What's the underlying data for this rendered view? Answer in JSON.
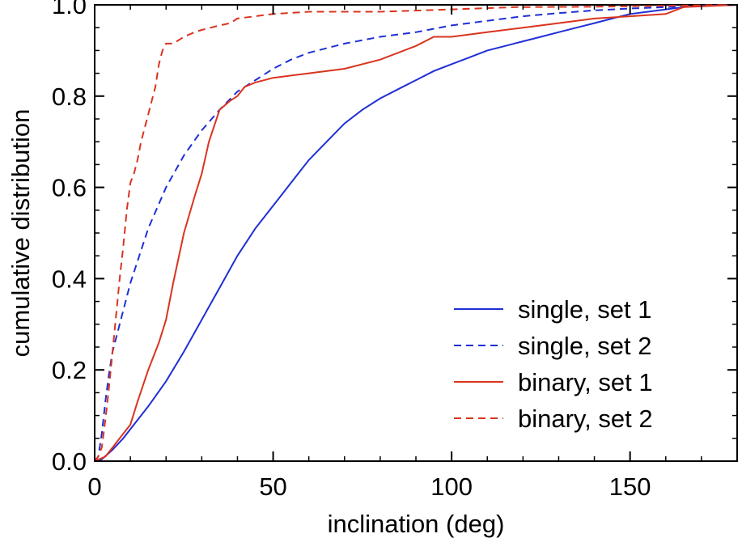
{
  "chart_data": {
    "type": "line",
    "title": "",
    "xlabel": "inclination (deg)",
    "ylabel": "cumulative distribution",
    "xlim": [
      0,
      180
    ],
    "ylim": [
      0.0,
      1.0
    ],
    "xticks": [
      0,
      50,
      100,
      150
    ],
    "xtick_labels": [
      "0",
      "50",
      "100",
      "150"
    ],
    "yticks": [
      0.0,
      0.2,
      0.4,
      0.6,
      0.8,
      1.0
    ],
    "ytick_labels": [
      "0.0",
      "0.2",
      "0.4",
      "0.6",
      "0.8",
      "1.0"
    ],
    "grid": false,
    "legend_position": "lower-right",
    "series": [
      {
        "name": "single, set 1",
        "color": "#1f2fd6",
        "style": "solid",
        "points": [
          [
            0,
            0
          ],
          [
            2,
            0.004
          ],
          [
            5,
            0.025
          ],
          [
            8,
            0.05
          ],
          [
            10,
            0.07
          ],
          [
            15,
            0.12
          ],
          [
            20,
            0.175
          ],
          [
            25,
            0.24
          ],
          [
            30,
            0.31
          ],
          [
            35,
            0.38
          ],
          [
            40,
            0.45
          ],
          [
            45,
            0.51
          ],
          [
            50,
            0.56
          ],
          [
            55,
            0.61
          ],
          [
            60,
            0.66
          ],
          [
            65,
            0.7
          ],
          [
            70,
            0.74
          ],
          [
            75,
            0.77
          ],
          [
            80,
            0.795
          ],
          [
            85,
            0.815
          ],
          [
            90,
            0.835
          ],
          [
            95,
            0.855
          ],
          [
            100,
            0.87
          ],
          [
            105,
            0.885
          ],
          [
            110,
            0.9
          ],
          [
            115,
            0.91
          ],
          [
            120,
            0.92
          ],
          [
            125,
            0.93
          ],
          [
            130,
            0.94
          ],
          [
            135,
            0.95
          ],
          [
            140,
            0.96
          ],
          [
            145,
            0.97
          ],
          [
            150,
            0.98
          ],
          [
            155,
            0.985
          ],
          [
            160,
            0.99
          ],
          [
            165,
            0.995
          ],
          [
            170,
            0.998
          ],
          [
            180,
            1.0
          ]
        ]
      },
      {
        "name": "single, set 2",
        "color": "#1f2fd6",
        "style": "dashed",
        "points": [
          [
            0,
            0
          ],
          [
            1,
            0.01
          ],
          [
            2,
            0.06
          ],
          [
            3,
            0.13
          ],
          [
            4,
            0.19
          ],
          [
            5,
            0.24
          ],
          [
            7,
            0.3
          ],
          [
            10,
            0.39
          ],
          [
            15,
            0.51
          ],
          [
            20,
            0.6
          ],
          [
            25,
            0.67
          ],
          [
            30,
            0.725
          ],
          [
            35,
            0.77
          ],
          [
            40,
            0.81
          ],
          [
            45,
            0.835
          ],
          [
            50,
            0.86
          ],
          [
            55,
            0.88
          ],
          [
            60,
            0.895
          ],
          [
            70,
            0.915
          ],
          [
            80,
            0.93
          ],
          [
            90,
            0.94
          ],
          [
            100,
            0.955
          ],
          [
            110,
            0.965
          ],
          [
            120,
            0.975
          ],
          [
            130,
            0.982
          ],
          [
            140,
            0.988
          ],
          [
            150,
            0.992
          ],
          [
            160,
            0.995
          ],
          [
            170,
            0.998
          ],
          [
            180,
            1.0
          ]
        ]
      },
      {
        "name": "binary, set 1",
        "color": "#d9341f",
        "style": "solid",
        "points": [
          [
            0,
            0
          ],
          [
            3,
            0.01
          ],
          [
            5,
            0.03
          ],
          [
            7,
            0.05
          ],
          [
            10,
            0.08
          ],
          [
            12,
            0.13
          ],
          [
            15,
            0.2
          ],
          [
            18,
            0.26
          ],
          [
            20,
            0.31
          ],
          [
            22,
            0.39
          ],
          [
            25,
            0.5
          ],
          [
            28,
            0.58
          ],
          [
            30,
            0.63
          ],
          [
            32,
            0.7
          ],
          [
            35,
            0.77
          ],
          [
            38,
            0.79
          ],
          [
            40,
            0.8
          ],
          [
            42,
            0.82
          ],
          [
            45,
            0.83
          ],
          [
            50,
            0.84
          ],
          [
            55,
            0.845
          ],
          [
            60,
            0.85
          ],
          [
            70,
            0.86
          ],
          [
            80,
            0.88
          ],
          [
            90,
            0.91
          ],
          [
            95,
            0.93
          ],
          [
            100,
            0.93
          ],
          [
            110,
            0.94
          ],
          [
            120,
            0.95
          ],
          [
            130,
            0.96
          ],
          [
            140,
            0.97
          ],
          [
            150,
            0.975
          ],
          [
            160,
            0.98
          ],
          [
            165,
            0.995
          ],
          [
            180,
            1.0
          ]
        ]
      },
      {
        "name": "binary, set 2",
        "color": "#d9341f",
        "style": "dashed",
        "points": [
          [
            0,
            0
          ],
          [
            1,
            0.01
          ],
          [
            2,
            0.03
          ],
          [
            3,
            0.09
          ],
          [
            4,
            0.16
          ],
          [
            5,
            0.24
          ],
          [
            6,
            0.32
          ],
          [
            7,
            0.4
          ],
          [
            8,
            0.47
          ],
          [
            9,
            0.55
          ],
          [
            10,
            0.61
          ],
          [
            11,
            0.63
          ],
          [
            12,
            0.66
          ],
          [
            13,
            0.7
          ],
          [
            15,
            0.76
          ],
          [
            16,
            0.79
          ],
          [
            17,
            0.82
          ],
          [
            18,
            0.87
          ],
          [
            19,
            0.9
          ],
          [
            20,
            0.915
          ],
          [
            22,
            0.915
          ],
          [
            25,
            0.93
          ],
          [
            28,
            0.94
          ],
          [
            30,
            0.945
          ],
          [
            35,
            0.955
          ],
          [
            38,
            0.96
          ],
          [
            40,
            0.97
          ],
          [
            45,
            0.975
          ],
          [
            50,
            0.98
          ],
          [
            60,
            0.985
          ],
          [
            80,
            0.985
          ],
          [
            100,
            0.99
          ],
          [
            118,
            0.995
          ],
          [
            140,
            0.996
          ],
          [
            160,
            0.998
          ],
          [
            180,
            1.0
          ]
        ]
      }
    ]
  }
}
